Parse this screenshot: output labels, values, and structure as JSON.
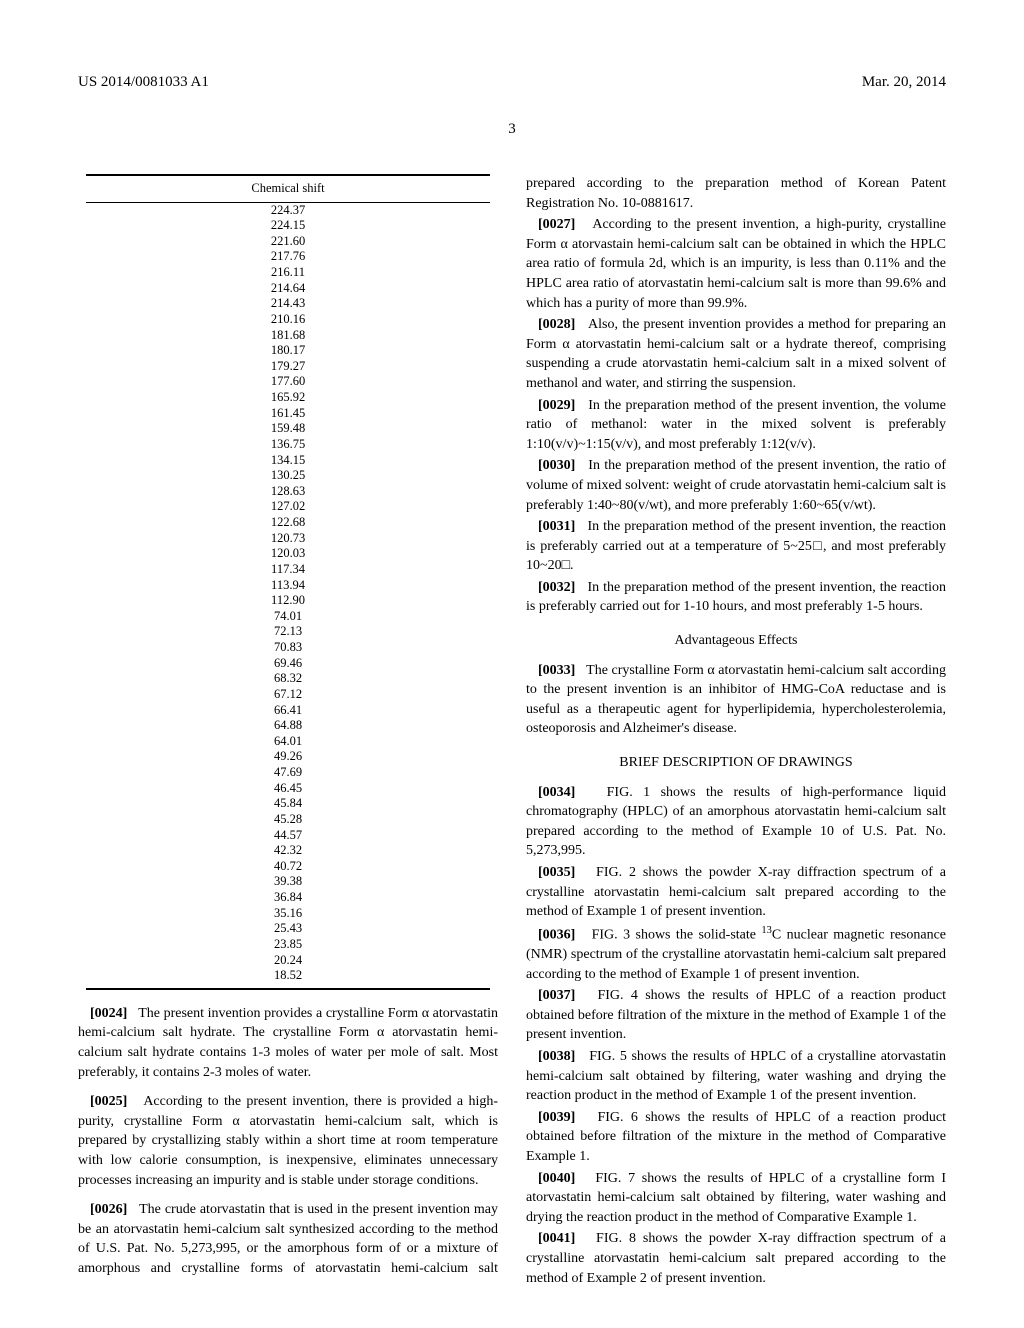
{
  "header": {
    "pub_num": "US 2014/0081033 A1",
    "pub_date": "Mar. 20, 2014",
    "page_num": "3"
  },
  "table": {
    "header": "Chemical shift",
    "rows": [
      "224.37",
      "224.15",
      "221.60",
      "217.76",
      "216.11",
      "214.64",
      "214.43",
      "210.16",
      "181.68",
      "180.17",
      "179.27",
      "177.60",
      "165.92",
      "161.45",
      "159.48",
      "136.75",
      "134.15",
      "130.25",
      "128.63",
      "127.02",
      "122.68",
      "120.73",
      "120.03",
      "117.34",
      "113.94",
      "112.90",
      "74.01",
      "72.13",
      "70.83",
      "69.46",
      "68.32",
      "67.12",
      "66.41",
      "64.88",
      "64.01",
      "49.26",
      "47.69",
      "46.45",
      "45.84",
      "45.28",
      "44.57",
      "42.32",
      "40.72",
      "39.38",
      "36.84",
      "35.16",
      "25.43",
      "23.85",
      "20.24",
      "18.52"
    ]
  },
  "p0024": "The present invention provides a crystalline Form α atorvastatin hemi-calcium salt hydrate. The crystalline Form α atorvastatin hemi-calcium salt hydrate contains 1-3 moles of water per mole of salt. Most preferably, it contains 2-3 moles of water.",
  "p0025": "According to the present invention, there is provided a high-purity, crystalline Form α atorvastatin hemi-calcium salt, which is prepared by crystallizing stably within a short time at room temperature with low calorie consumption, is inexpensive, eliminates unnecessary processes increasing an impurity and is stable under storage conditions.",
  "p0026": "The crude atorvastatin that is used in the present invention may be an atorvastatin hemi-calcium salt synthesized according to the method of U.S. Pat. No. 5,273,995, or the amorphous form of or a mixture of amorphous and crystalline forms of atorvastatin hemi-calcium salt prepared according to the preparation method of Korean Patent Registration No. 10-0881617.",
  "p0027": "According to the present invention, a high-purity, crystalline Form α atorvastain hemi-calcium salt can be obtained in which the HPLC area ratio of formula 2d, which is an impurity, is less than 0.11% and the HPLC area ratio of atorvastatin hemi-calcium salt is more than 99.6% and which has a purity of more than 99.9%.",
  "p0028": "Also, the present invention provides a method for preparing an Form α atorvastatin hemi-calcium salt or a hydrate thereof, comprising suspending a crude atorvastatin hemi-calcium salt in a mixed solvent of methanol and water, and stirring the suspension.",
  "p0029": "In the preparation method of the present invention, the volume ratio of methanol: water in the mixed solvent is preferably 1:10(v/v)~1:15(v/v), and most preferably 1:12(v/v).",
  "p0030": "In the preparation method of the present invention, the ratio of volume of mixed solvent: weight of crude atorvastatin hemi-calcium salt is preferably 1:40~80(v/wt), and more preferably 1:60~65(v/wt).",
  "p0031": "In the preparation method of the present invention, the reaction is preferably carried out at a temperature of 5~25□, and most preferably 10~20□.",
  "p0032": "In the preparation method of the present invention, the reaction is preferably carried out for 1-10 hours, and most preferably 1-5 hours.",
  "h_adv": "Advantageous Effects",
  "p0033": "The crystalline Form α atorvastatin hemi-calcium salt according to the present invention is an inhibitor of HMG-CoA reductase and is useful as a therapeutic agent for hyperlipidemia, hypercholesterolemia, osteoporosis and Alzheimer's disease.",
  "h_drawings": "BRIEF DESCRIPTION OF DRAWINGS",
  "p0034": "FIG. 1 shows the results of high-performance liquid chromatography (HPLC) of an amorphous atorvastatin hemi-calcium salt prepared according to the method of Example 10 of U.S. Pat. No. 5,273,995.",
  "p0035": "FIG. 2 shows the powder X-ray diffraction spectrum of a crystalline atorvastatin hemi-calcium salt prepared according to the method of Example 1 of present invention.",
  "p0036_a": "FIG. 3 shows the solid-state ",
  "p0036_b": "C nuclear magnetic resonance (NMR) spectrum of the crystalline atorvastatin hemi-calcium salt prepared according to the method of Example 1 of present invention.",
  "p0037": "FIG. 4 shows the results of HPLC of a reaction product obtained before filtration of the mixture in the method of Example 1 of the present invention.",
  "p0038": "FIG. 5 shows the results of HPLC of a crystalline atorvastatin hemi-calcium salt obtained by filtering, water washing and drying the reaction product in the method of Example 1 of the present invention.",
  "p0039": "FIG. 6 shows the results of HPLC of a reaction product obtained before filtration of the mixture in the method of Comparative Example 1.",
  "p0040": "FIG. 7 shows the results of HPLC of a crystalline form I atorvastatin hemi-calcium salt obtained by filtering, water washing and drying the reaction product in the method of Comparative Example 1.",
  "p0041": "FIG. 8 shows the powder X-ray diffraction spectrum of a crystalline atorvastatin hemi-calcium salt prepared according to the method of Example 2 of present invention."
}
